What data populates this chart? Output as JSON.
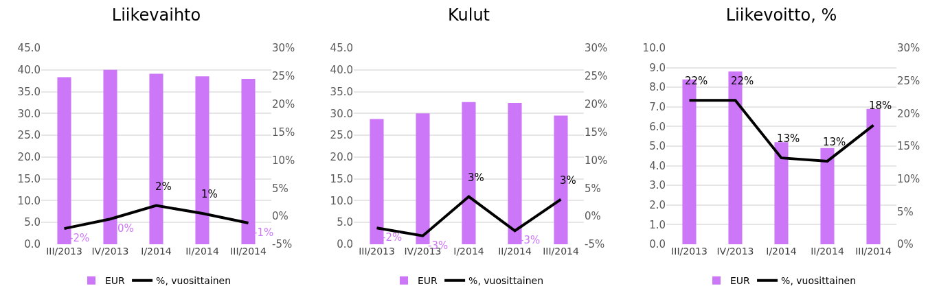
{
  "chart_data": [
    {
      "type": "bar",
      "title": "Liikevaihto",
      "categories": [
        "III/2013",
        "IV/2013",
        "I/2014",
        "II/2014",
        "III/2014"
      ],
      "series": [
        {
          "name": "EUR",
          "color": "#cc77f7",
          "values": [
            38.3,
            40.0,
            39.1,
            38.5,
            37.9
          ]
        },
        {
          "name": "%, vuosittainen",
          "type": "line",
          "axis": "y2",
          "color": "#000000",
          "values": [
            -2.2,
            -0.5,
            1.9,
            0.5,
            -1.2
          ],
          "value_labels": [
            "-2%",
            "0%",
            "2%",
            "1%",
            "-1%"
          ]
        }
      ],
      "ylim": [
        0,
        45
      ],
      "yticks": [
        {
          "value": 0,
          "label": "0.0"
        },
        {
          "value": 5,
          "label": "5.0"
        },
        {
          "value": 10,
          "label": "10.0"
        },
        {
          "value": 15,
          "label": "15.0"
        },
        {
          "value": 20,
          "label": "20.0"
        },
        {
          "value": 25,
          "label": "25.0"
        },
        {
          "value": 30,
          "label": "30.0"
        },
        {
          "value": 35,
          "label": "35.0"
        },
        {
          "value": 40,
          "label": "40.0"
        },
        {
          "value": 45,
          "label": "45.0"
        }
      ],
      "y2lim": [
        -5,
        30
      ],
      "y2ticks": [
        {
          "value": -5,
          "label": "-5%"
        },
        {
          "value": 0,
          "label": "0%"
        },
        {
          "value": 5,
          "label": "5%"
        },
        {
          "value": 10,
          "label": "10%"
        },
        {
          "value": 15,
          "label": "15%"
        },
        {
          "value": 20,
          "label": "20%"
        },
        {
          "value": 25,
          "label": "25%"
        },
        {
          "value": 30,
          "label": "30%"
        }
      ],
      "grid": "y",
      "legend": "bottom"
    },
    {
      "type": "bar",
      "title": "Kulut",
      "categories": [
        "III/2013",
        "IV/2013",
        "I/2014",
        "II/2014",
        "III/2014"
      ],
      "series": [
        {
          "name": "EUR",
          "color": "#cc77f7",
          "values": [
            28.7,
            30.0,
            32.6,
            32.4,
            29.5
          ]
        },
        {
          "name": "%, vuosittainen",
          "type": "line",
          "axis": "y2",
          "color": "#000000",
          "values": [
            -2.1,
            -3.5,
            3.5,
            -2.6,
            3.0
          ],
          "value_labels": [
            "-2%",
            "-3%",
            "3%",
            "-3%",
            "3%"
          ]
        }
      ],
      "ylim": [
        0,
        45
      ],
      "yticks": [
        {
          "value": 0,
          "label": "0.0"
        },
        {
          "value": 5,
          "label": "5.0"
        },
        {
          "value": 10,
          "label": "10.0"
        },
        {
          "value": 15,
          "label": "15.0"
        },
        {
          "value": 20,
          "label": "20.0"
        },
        {
          "value": 25,
          "label": "25.0"
        },
        {
          "value": 30,
          "label": "30.0"
        },
        {
          "value": 35,
          "label": "35.0"
        },
        {
          "value": 40,
          "label": "40.0"
        },
        {
          "value": 45,
          "label": "45.0"
        }
      ],
      "y2lim": [
        -5,
        30
      ],
      "y2ticks": [
        {
          "value": -5,
          "label": "-5%"
        },
        {
          "value": 0,
          "label": "0%"
        },
        {
          "value": 5,
          "label": "5%"
        },
        {
          "value": 10,
          "label": "10%"
        },
        {
          "value": 15,
          "label": "15%"
        },
        {
          "value": 20,
          "label": "20%"
        },
        {
          "value": 25,
          "label": "25%"
        },
        {
          "value": 30,
          "label": "30%"
        }
      ],
      "grid": "y",
      "legend": "bottom"
    },
    {
      "type": "bar",
      "title": "Liikevoitto, %",
      "categories": [
        "III/2013",
        "IV/2013",
        "I/2014",
        "II/2014",
        "III/2014"
      ],
      "series": [
        {
          "name": "EUR",
          "color": "#cc77f7",
          "values": [
            8.4,
            8.8,
            5.2,
            4.9,
            6.9
          ]
        },
        {
          "name": "%, vuosittainen",
          "type": "line",
          "axis": "y2",
          "color": "#000000",
          "values": [
            22.0,
            22.0,
            13.2,
            12.7,
            18.2
          ],
          "value_labels": [
            "22%",
            "22%",
            "13%",
            "13%",
            "18%"
          ]
        }
      ],
      "ylim": [
        0,
        10
      ],
      "yticks": [
        {
          "value": 0,
          "label": "0.0"
        },
        {
          "value": 1,
          "label": "1.0"
        },
        {
          "value": 2,
          "label": "2.0"
        },
        {
          "value": 3,
          "label": "3.0"
        },
        {
          "value": 4,
          "label": "4.0"
        },
        {
          "value": 5,
          "label": "5.0"
        },
        {
          "value": 6,
          "label": "6.0"
        },
        {
          "value": 7,
          "label": "7.0"
        },
        {
          "value": 8,
          "label": "8.0"
        },
        {
          "value": 9,
          "label": "9.0"
        },
        {
          "value": 10,
          "label": "10.0"
        }
      ],
      "y2lim": [
        0,
        30
      ],
      "y2ticks": [
        {
          "value": 0,
          "label": "0%"
        },
        {
          "value": 5,
          "label": "5%"
        },
        {
          "value": 10,
          "label": "10%"
        },
        {
          "value": 15,
          "label": "15%"
        },
        {
          "value": 20,
          "label": "20%"
        },
        {
          "value": 25,
          "label": "25%"
        },
        {
          "value": 30,
          "label": "30%"
        }
      ],
      "grid": "y",
      "legend": "bottom"
    }
  ]
}
